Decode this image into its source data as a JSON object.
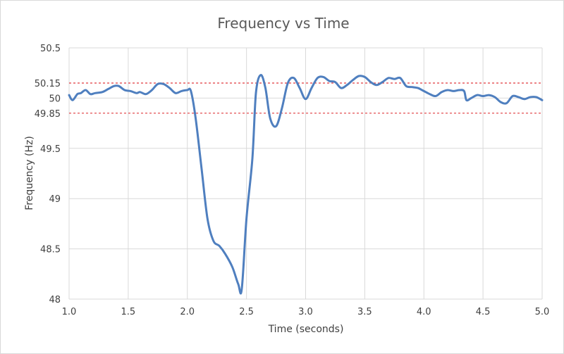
{
  "chart_data": {
    "type": "line",
    "title": "Frequency vs Time",
    "xlabel": "Time (seconds)",
    "ylabel": "Frequency (Hz)",
    "xlim": [
      1.0,
      5.0
    ],
    "ylim": [
      48,
      50.5
    ],
    "x_ticks": [
      1.0,
      1.5,
      2.0,
      2.5,
      3.0,
      3.5,
      4.0,
      4.5,
      5.0
    ],
    "x_tick_labels": [
      "1.0",
      "1.5",
      "2.0",
      "2.5",
      "3.0",
      "3.5",
      "4.0",
      "4.5",
      "5.0"
    ],
    "y_ticks": [
      48,
      48.5,
      49,
      49.5,
      49.85,
      50,
      50.15,
      50.5
    ],
    "y_tick_labels": [
      "48",
      "48.5",
      "49",
      "49.5",
      "49.85",
      "50",
      "50.15",
      "50.5"
    ],
    "reference_lines": [
      50.15,
      49.85
    ],
    "grid": true,
    "series": [
      {
        "name": "Frequency",
        "color": "#4f7fbf",
        "points": [
          [
            1.0,
            50.03
          ],
          [
            1.03,
            49.98
          ],
          [
            1.07,
            50.04
          ],
          [
            1.1,
            50.05
          ],
          [
            1.14,
            50.08
          ],
          [
            1.18,
            50.04
          ],
          [
            1.22,
            50.05
          ],
          [
            1.28,
            50.06
          ],
          [
            1.33,
            50.09
          ],
          [
            1.38,
            50.12
          ],
          [
            1.42,
            50.12
          ],
          [
            1.47,
            50.08
          ],
          [
            1.52,
            50.07
          ],
          [
            1.57,
            50.05
          ],
          [
            1.6,
            50.06
          ],
          [
            1.65,
            50.04
          ],
          [
            1.7,
            50.08
          ],
          [
            1.75,
            50.14
          ],
          [
            1.8,
            50.14
          ],
          [
            1.85,
            50.1
          ],
          [
            1.9,
            50.05
          ],
          [
            1.95,
            50.07
          ],
          [
            2.0,
            50.08
          ],
          [
            2.03,
            50.07
          ],
          [
            2.07,
            49.8
          ],
          [
            2.12,
            49.3
          ],
          [
            2.17,
            48.8
          ],
          [
            2.22,
            48.58
          ],
          [
            2.27,
            48.53
          ],
          [
            2.32,
            48.45
          ],
          [
            2.38,
            48.32
          ],
          [
            2.43,
            48.15
          ],
          [
            2.46,
            48.1
          ],
          [
            2.5,
            48.8
          ],
          [
            2.55,
            49.4
          ],
          [
            2.58,
            50.05
          ],
          [
            2.62,
            50.23
          ],
          [
            2.66,
            50.1
          ],
          [
            2.7,
            49.8
          ],
          [
            2.75,
            49.72
          ],
          [
            2.8,
            49.9
          ],
          [
            2.85,
            50.15
          ],
          [
            2.9,
            50.2
          ],
          [
            2.95,
            50.1
          ],
          [
            3.0,
            49.99
          ],
          [
            3.05,
            50.1
          ],
          [
            3.1,
            50.2
          ],
          [
            3.15,
            50.21
          ],
          [
            3.2,
            50.17
          ],
          [
            3.25,
            50.16
          ],
          [
            3.3,
            50.1
          ],
          [
            3.35,
            50.13
          ],
          [
            3.4,
            50.18
          ],
          [
            3.45,
            50.22
          ],
          [
            3.5,
            50.21
          ],
          [
            3.55,
            50.16
          ],
          [
            3.6,
            50.13
          ],
          [
            3.65,
            50.16
          ],
          [
            3.7,
            50.2
          ],
          [
            3.75,
            50.19
          ],
          [
            3.8,
            50.2
          ],
          [
            3.85,
            50.12
          ],
          [
            3.9,
            50.11
          ],
          [
            3.95,
            50.1
          ],
          [
            4.0,
            50.07
          ],
          [
            4.05,
            50.04
          ],
          [
            4.1,
            50.02
          ],
          [
            4.15,
            50.06
          ],
          [
            4.2,
            50.08
          ],
          [
            4.25,
            50.07
          ],
          [
            4.3,
            50.08
          ],
          [
            4.34,
            50.07
          ],
          [
            4.36,
            49.98
          ],
          [
            4.4,
            50.0
          ],
          [
            4.45,
            50.03
          ],
          [
            4.5,
            50.02
          ],
          [
            4.55,
            50.03
          ],
          [
            4.6,
            50.01
          ],
          [
            4.65,
            49.96
          ],
          [
            4.7,
            49.95
          ],
          [
            4.75,
            50.02
          ],
          [
            4.8,
            50.01
          ],
          [
            4.85,
            49.99
          ],
          [
            4.9,
            50.01
          ],
          [
            4.95,
            50.01
          ],
          [
            5.0,
            49.98
          ]
        ]
      }
    ]
  }
}
